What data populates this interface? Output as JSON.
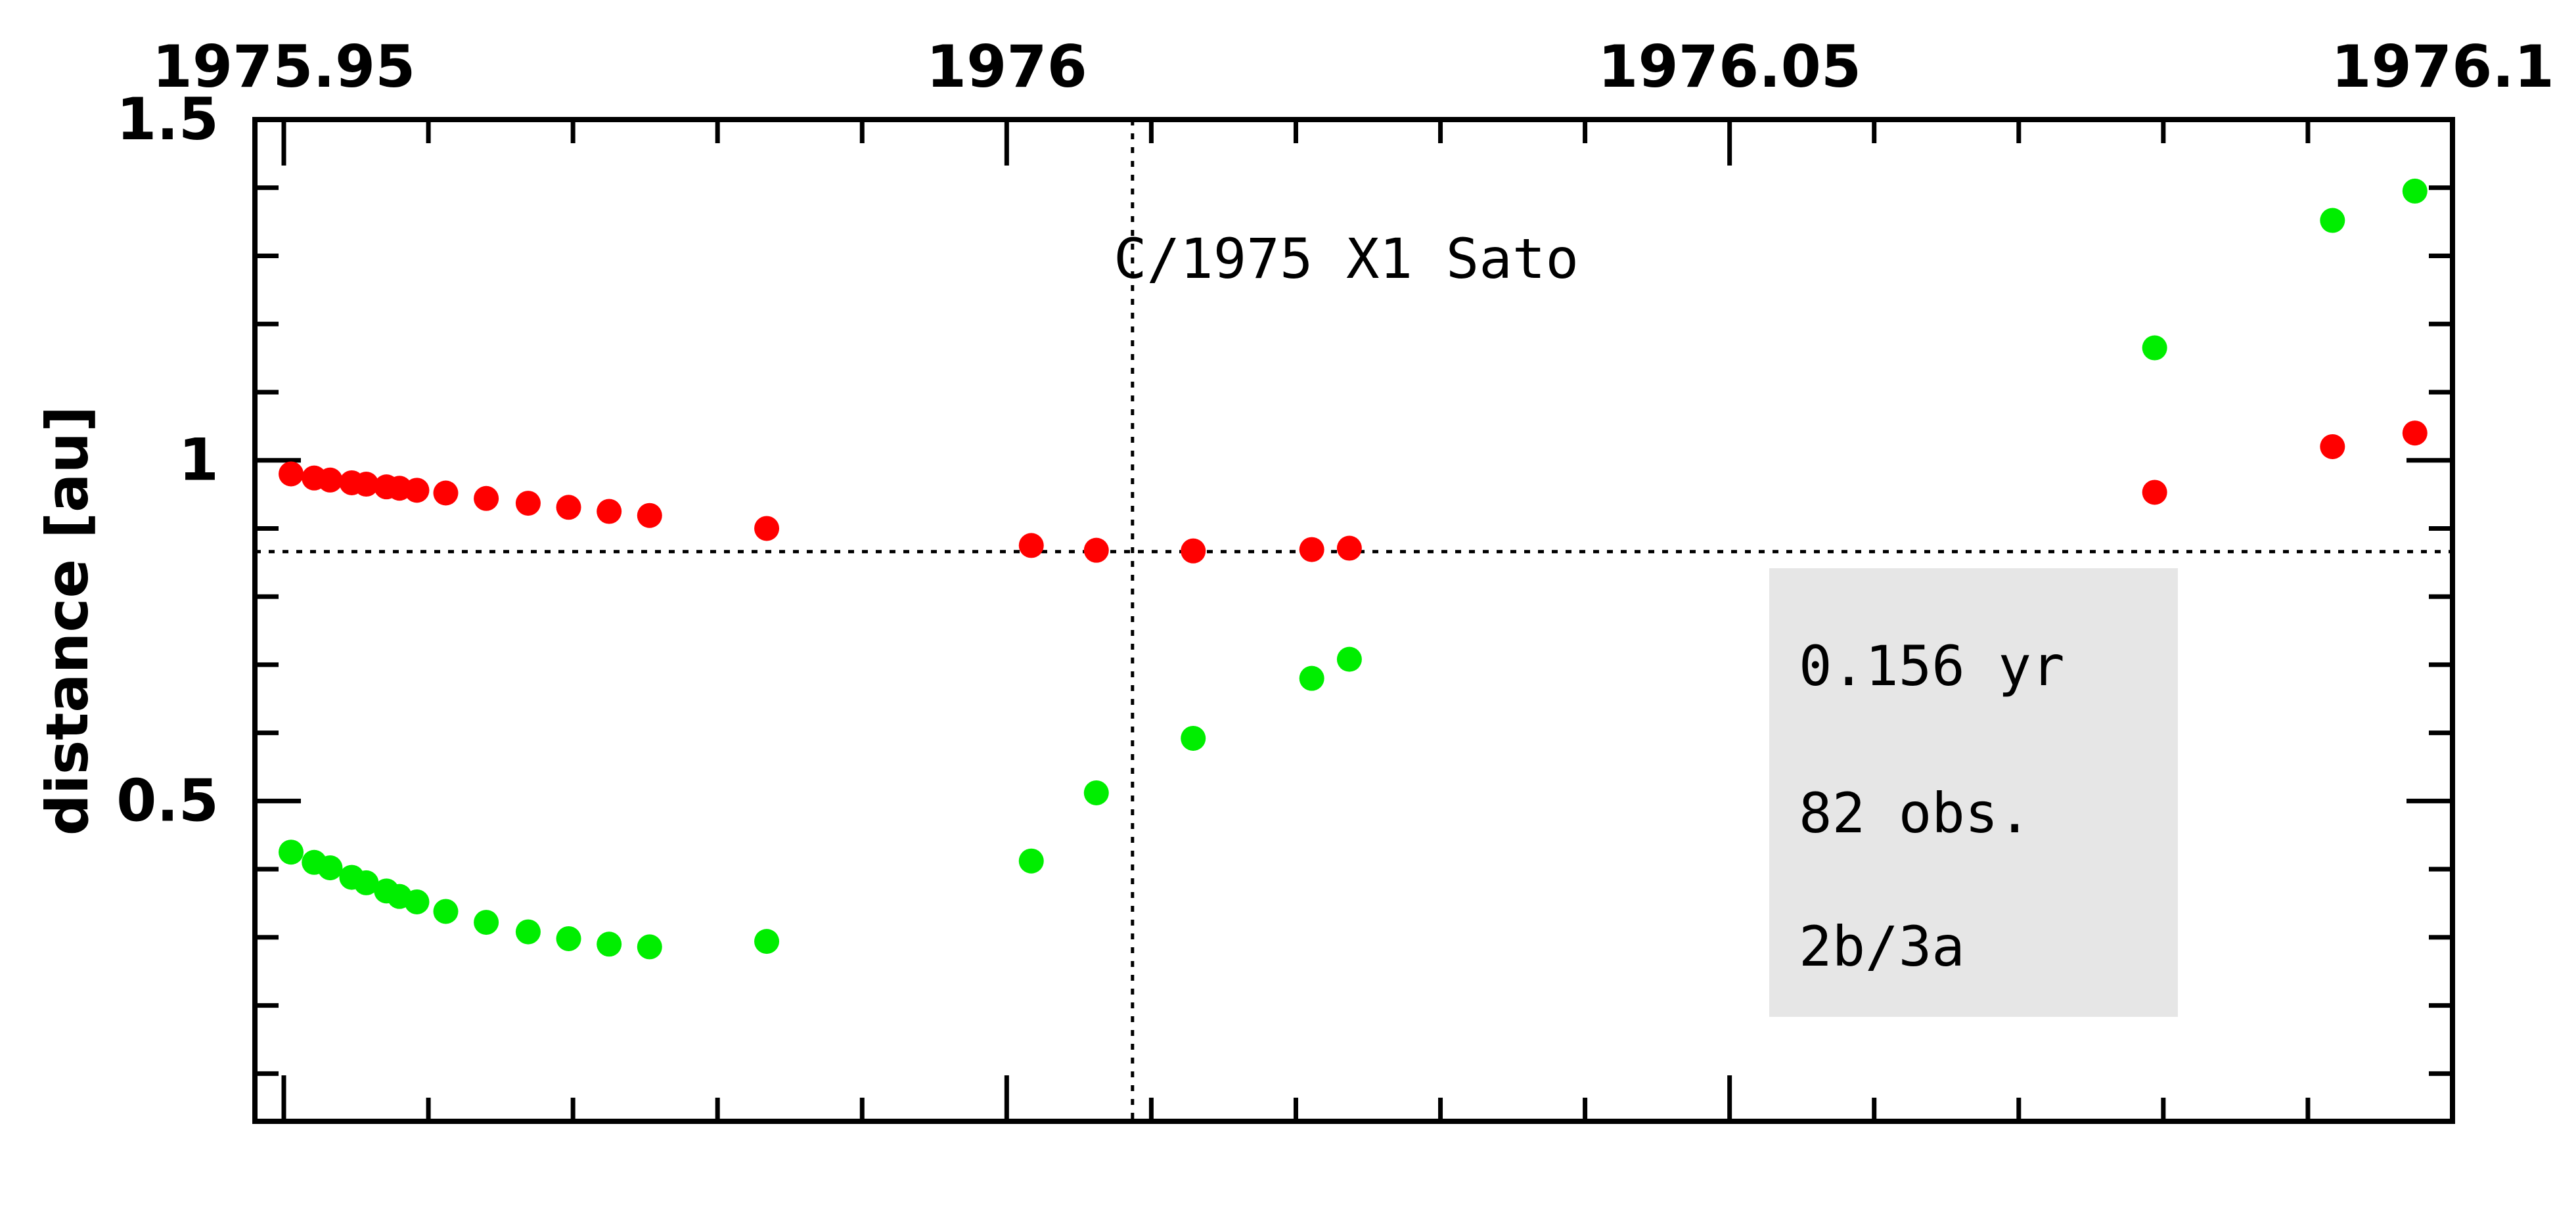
{
  "chart_data": {
    "type": "scatter",
    "title": "C/1975 X1 Sato",
    "xlabel": "",
    "ylabel": "distance [au]",
    "xlim": [
      1975.948,
      1976.1
    ],
    "ylim": [
      0.03,
      1.5
    ],
    "x_ticks": [
      1975.95,
      1976,
      1976.05,
      1976.1
    ],
    "x_tick_labels": [
      "1975.95",
      "1976",
      "1976.05",
      "1976.1"
    ],
    "y_ticks": [
      0.5,
      1,
      1.5
    ],
    "y_tick_labels": [
      "0.5",
      "1",
      "1.5"
    ],
    "reference_lines": {
      "x": 1976.0087,
      "y": 0.866
    },
    "info_box": {
      "lines": [
        "0.156 yr",
        "82 obs.",
        "2b/3a"
      ],
      "color": "#e6e6e6"
    },
    "colors": {
      "red_series": "#ff0000",
      "green_series": "#00ee00"
    },
    "series": [
      {
        "color": "#ff0000",
        "x": [
          1975.9505,
          1975.9521,
          1975.9532,
          1975.9547,
          1975.9557,
          1975.9571,
          1975.958,
          1975.9592,
          1975.9612,
          1975.964,
          1975.9669,
          1975.9697,
          1975.9725,
          1975.9753,
          1975.9834,
          1976.0017,
          1976.0062,
          1976.0129,
          1976.0211,
          1976.0237,
          1976.0794,
          1976.0917,
          1976.0974
        ],
        "y": [
          0.98,
          0.974,
          0.971,
          0.967,
          0.965,
          0.961,
          0.959,
          0.956,
          0.952,
          0.944,
          0.937,
          0.931,
          0.925,
          0.919,
          0.9,
          0.875,
          0.868,
          0.867,
          0.869,
          0.871,
          0.953,
          1.02,
          1.04
        ]
      },
      {
        "color": "#00ee00",
        "x": [
          1975.9505,
          1975.9521,
          1975.9532,
          1975.9547,
          1975.9557,
          1975.9571,
          1975.958,
          1975.9592,
          1975.9612,
          1975.964,
          1975.9669,
          1975.9697,
          1975.9725,
          1975.9753,
          1975.9834,
          1976.0017,
          1976.0062,
          1976.0129,
          1976.0211,
          1976.0237,
          1976.0794,
          1976.0917,
          1976.0974
        ],
        "y": [
          0.425,
          0.41,
          0.402,
          0.388,
          0.38,
          0.368,
          0.36,
          0.352,
          0.338,
          0.322,
          0.308,
          0.298,
          0.29,
          0.286,
          0.294,
          0.412,
          0.512,
          0.592,
          0.68,
          0.708,
          1.165,
          1.352,
          1.395
        ]
      }
    ]
  }
}
